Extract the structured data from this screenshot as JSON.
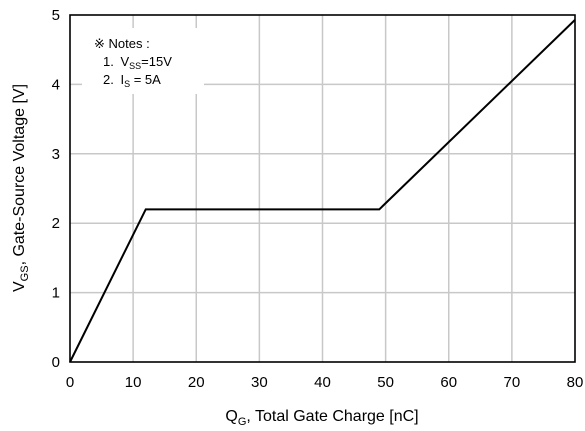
{
  "chart_data": {
    "type": "line",
    "xlabel": {
      "main": "Q",
      "sub": "G",
      "rest": ", Total Gate Charge [nC]"
    },
    "ylabel": {
      "main": "V",
      "sub": "GS",
      "rest": ", Gate-Source Voltage [V]"
    },
    "xlim": [
      0,
      80
    ],
    "ylim": [
      0,
      5
    ],
    "xticks": [
      0,
      10,
      20,
      30,
      40,
      50,
      60,
      70,
      80
    ],
    "yticks": [
      0,
      1,
      2,
      3,
      4,
      5
    ],
    "grid": true,
    "series": [
      {
        "x": [
          0,
          12,
          49,
          80
        ],
        "y": [
          0,
          2.2,
          2.2,
          4.93
        ]
      }
    ],
    "colors": {
      "line": "#000000",
      "grid": "#c8c8c8",
      "frame": "#000000"
    },
    "notes": {
      "title": "※ Notes :",
      "items": [
        {
          "num": "1.",
          "main": "V",
          "sub": "SS",
          "rest": "=15V"
        },
        {
          "num": "2.",
          "main": "I",
          "sub": "S",
          "rest": " = 5A"
        }
      ]
    }
  }
}
